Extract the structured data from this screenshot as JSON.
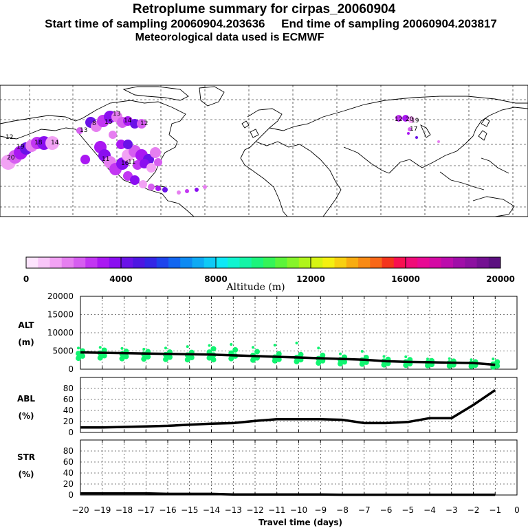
{
  "header": {
    "title": "Retroplume summary for cirpas_20060904",
    "sampling": "Start time of sampling 20060904.203636     End time of sampling 20060904.203817",
    "met": "Meteorological data used is ECMWF"
  },
  "colorbar": {
    "tick_labels": [
      "0",
      "4000",
      "8000",
      "12000",
      "16000",
      "20000"
    ],
    "title": "Altitude (m)",
    "colors": [
      "#fde4fd",
      "#f8c6f8",
      "#f2a2f4",
      "#e67ff0",
      "#d65ef0",
      "#c236f2",
      "#aa18f2",
      "#8a0ef0",
      "#6a12e8",
      "#4e16e2",
      "#3426e6",
      "#1e44ec",
      "#1266f0",
      "#0e8af2",
      "#0eaaf4",
      "#0ecaf6",
      "#0ee8f6",
      "#10f4d0",
      "#14f4a6",
      "#1cf47c",
      "#34f458",
      "#5cf43a",
      "#86f42a",
      "#b0f41c",
      "#d6f412",
      "#f4f010",
      "#f8d010",
      "#f8ac10",
      "#f88a14",
      "#f86818",
      "#f4341c",
      "#f81050",
      "#f00c78",
      "#e80a94",
      "#d40aa4",
      "#bc0cac",
      "#a00ea8",
      "#8c10a0",
      "#741092",
      "#5c1080"
    ]
  },
  "map_labels": [
    {
      "text": "12",
      "alt": 3200
    },
    {
      "text": "20",
      "alt": 3400
    },
    {
      "text": "19",
      "alt": 3400
    },
    {
      "text": "18",
      "alt": 3600
    },
    {
      "text": "14",
      "alt": 3300
    },
    {
      "text": "13",
      "alt": 3200
    },
    {
      "text": "8",
      "alt": 3100
    },
    {
      "text": "15",
      "alt": 2500
    },
    {
      "text": "13",
      "alt": 2200
    },
    {
      "text": "14",
      "alt": 3600
    },
    {
      "text": "12",
      "alt": 2400
    },
    {
      "text": "12",
      "alt": 2600
    },
    {
      "text": "20",
      "alt": 3100
    },
    {
      "text": "19",
      "alt": 3100
    },
    {
      "text": "17",
      "alt": 3100
    },
    {
      "text": "16",
      "alt": 4000
    },
    {
      "text": "11",
      "alt": 2000
    },
    {
      "text": "11",
      "alt": 1200
    }
  ],
  "panels": {
    "alt": {
      "label_line1": "ALT",
      "label_line2": "(m)"
    },
    "abl": {
      "label_line1": "ABL",
      "label_line2": "(%)"
    },
    "str": {
      "label_line1": "STR",
      "label_line2": "(%)"
    }
  },
  "chart_data": [
    {
      "type": "line",
      "title": "ALT (m)",
      "xlabel": "Travel time (days)",
      "ylabel": "ALT (m)",
      "xlim": [
        -20,
        0
      ],
      "ylim": [
        0,
        20000
      ],
      "xticks": [
        -20,
        -19,
        -18,
        -17,
        -16,
        -15,
        -14,
        -13,
        -12,
        -11,
        -10,
        -9,
        -8,
        -7,
        -6,
        -5,
        -4,
        -3,
        -2,
        -1,
        0
      ],
      "xtick_labels": [
        "−20",
        "−19",
        "−18",
        "−17",
        "−16",
        "−15",
        "−14",
        "−13",
        "−12",
        "−11",
        "−10",
        "−9",
        "−8",
        "−7",
        "−6",
        "−5",
        "−4",
        "−3",
        "−2",
        "−1",
        "0"
      ],
      "yticks": [
        0,
        5000,
        10000,
        15000,
        20000
      ],
      "ytick_labels": [
        "0",
        "5000",
        "10000",
        "15000",
        "20000"
      ],
      "x": [
        -20,
        -19,
        -18,
        -17,
        -16,
        -15,
        -14,
        -13,
        -12,
        -11,
        -10,
        -9,
        -8,
        -7,
        -6,
        -5,
        -4,
        -3,
        -2,
        -1
      ],
      "mean": [
        4600,
        4500,
        4400,
        4300,
        4200,
        4100,
        4000,
        3800,
        3600,
        3400,
        3200,
        3000,
        2800,
        2600,
        2200,
        2000,
        1900,
        1800,
        1700,
        1200
      ],
      "scatter": [
        {
          "x": -20,
          "y": [
            5800,
            5000,
            4300,
            3600,
            3000
          ]
        },
        {
          "x": -19,
          "y": [
            6000,
            5200,
            4400,
            3700,
            3100
          ]
        },
        {
          "x": -18,
          "y": [
            5700,
            4900,
            4200,
            3500,
            2900
          ]
        },
        {
          "x": -17,
          "y": [
            5500,
            4800,
            4100,
            3400,
            2800
          ]
        },
        {
          "x": -16,
          "y": [
            5800,
            4700,
            4000,
            3300,
            2700
          ]
        },
        {
          "x": -15,
          "y": [
            6200,
            4600,
            3900,
            3200,
            2600
          ]
        },
        {
          "x": -14,
          "y": [
            6500,
            5600,
            4700,
            3900,
            3100,
            2600
          ]
        },
        {
          "x": -13,
          "y": [
            6800,
            5300,
            4400,
            3600,
            2900
          ]
        },
        {
          "x": -12,
          "y": [
            6000,
            4800,
            3800,
            3100,
            2500
          ]
        },
        {
          "x": -11,
          "y": [
            6600,
            4200,
            3300,
            2700,
            2300
          ]
        },
        {
          "x": -10,
          "y": [
            7200,
            4000,
            3200,
            2600,
            2100
          ]
        },
        {
          "x": -9,
          "y": [
            5800,
            3800,
            2900,
            2300,
            1700
          ]
        },
        {
          "x": -8,
          "y": [
            4200,
            3300,
            2600,
            2000,
            1500
          ]
        },
        {
          "x": -7,
          "y": [
            4900,
            3200,
            2500,
            1900,
            1400
          ]
        },
        {
          "x": -6,
          "y": [
            3500,
            2700,
            2200,
            1600,
            1200
          ]
        },
        {
          "x": -5,
          "y": [
            3400,
            2600,
            2000,
            1500,
            1100
          ]
        },
        {
          "x": -4,
          "y": [
            2800,
            2300,
            1800,
            1300,
            1000
          ]
        },
        {
          "x": -3,
          "y": [
            2900,
            2200,
            1700,
            1200,
            900
          ]
        },
        {
          "x": -2,
          "y": [
            2600,
            2000,
            1600,
            1100,
            800
          ]
        },
        {
          "x": -1,
          "y": [
            2800,
            2000,
            1400,
            900,
            600
          ]
        }
      ]
    },
    {
      "type": "line",
      "title": "ABL (%)",
      "xlim": [
        -20,
        0
      ],
      "ylim": [
        0,
        100
      ],
      "yticks": [
        0,
        20,
        40,
        60,
        80
      ],
      "ytick_labels": [
        "0",
        "20",
        "40",
        "60",
        "80"
      ],
      "x": [
        -20,
        -19,
        -18,
        -17,
        -16,
        -15,
        -14,
        -13,
        -12,
        -11,
        -10,
        -9,
        -8,
        -7,
        -6,
        -5,
        -4,
        -3,
        -2,
        -1
      ],
      "values": [
        9,
        9,
        10,
        11,
        12,
        14,
        16,
        17,
        21,
        24,
        24,
        24,
        23,
        17,
        17,
        19,
        26,
        26,
        50,
        77
      ]
    },
    {
      "type": "line",
      "title": "STR (%)",
      "xlim": [
        -20,
        0
      ],
      "ylim": [
        0,
        100
      ],
      "yticks": [
        0,
        20,
        40,
        60,
        80
      ],
      "ytick_labels": [
        "0",
        "20",
        "40",
        "60",
        "80"
      ],
      "x": [
        -20,
        -19,
        -18,
        -17,
        -16,
        -15,
        -14,
        -13,
        -12,
        -11,
        -10,
        -9,
        -8,
        -7,
        -6,
        -5,
        -4,
        -3,
        -2,
        -1
      ],
      "values": [
        3,
        3,
        3,
        3,
        2,
        2,
        2,
        1,
        1,
        1,
        1,
        1,
        0.5,
        0.5,
        0.5,
        0.5,
        0.5,
        0.5,
        0.5,
        0.5
      ]
    }
  ]
}
